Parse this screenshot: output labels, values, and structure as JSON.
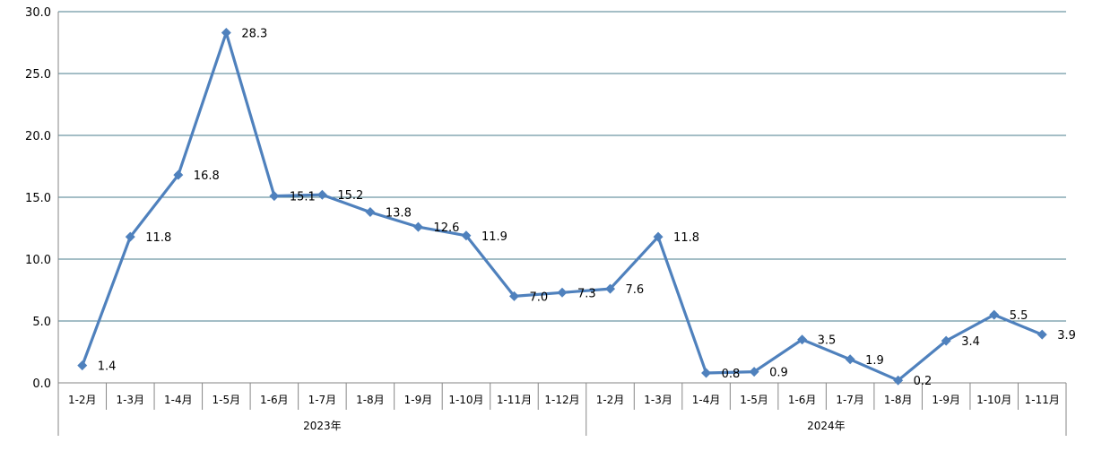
{
  "chart_data": {
    "type": "line",
    "title": "",
    "xlabel": "",
    "ylabel": "",
    "ylim": [
      0,
      30
    ],
    "y_ticks": [
      "0.0",
      "5.0",
      "10.0",
      "15.0",
      "20.0",
      "25.0",
      "30.0"
    ],
    "grid": true,
    "legend": "none",
    "categories": [
      "1-2月",
      "1-3月",
      "1-4月",
      "1-5月",
      "1-6月",
      "1-7月",
      "1-8月",
      "1-9月",
      "1-10月",
      "1-11月",
      "1-12月",
      "1-2月",
      "1-3月",
      "1-4月",
      "1-5月",
      "1-6月",
      "1-7月",
      "1-8月",
      "1-9月",
      "1-10月",
      "1-11月"
    ],
    "groups": [
      {
        "label": "2023年",
        "count": 11
      },
      {
        "label": "2024年",
        "count": 10
      }
    ],
    "series": [
      {
        "values": [
          1.4,
          11.8,
          16.8,
          28.3,
          15.1,
          15.2,
          13.8,
          12.6,
          11.9,
          7.0,
          7.3,
          7.6,
          11.8,
          0.8,
          0.9,
          3.5,
          1.9,
          0.2,
          3.4,
          5.5,
          3.9
        ],
        "labels": [
          "1.4",
          "11.8",
          "16.8",
          "28.3",
          "15.1",
          "15.2",
          "13.8",
          "12.6",
          "11.9",
          "7.0",
          "7.3",
          "7.6",
          "11.8",
          "0.8",
          "0.9",
          "3.5",
          "1.9",
          "0.2",
          "3.4",
          "5.5",
          "3.9"
        ],
        "color": "#4F81BD"
      }
    ],
    "colors": {
      "line": "#4F81BD",
      "grid": "#4A7E8C",
      "axis": "#868686"
    }
  }
}
